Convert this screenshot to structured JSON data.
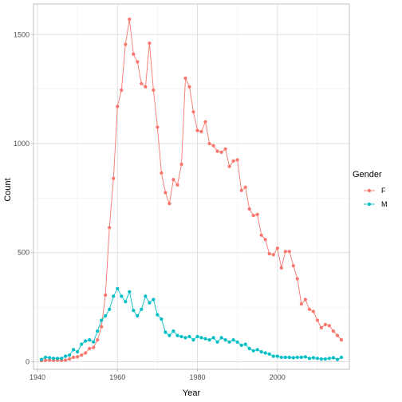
{
  "chart_data": {
    "type": "line",
    "xlabel": "Year",
    "ylabel": "Count",
    "xlim": [
      1939,
      2018
    ],
    "ylim": [
      -35,
      1640
    ],
    "x_ticks": [
      1940,
      1960,
      1980,
      2000
    ],
    "y_ticks": [
      0,
      500,
      1000,
      1500
    ],
    "grid": true,
    "legend": {
      "title": "Gender",
      "position": "right"
    },
    "series": [
      {
        "name": "F",
        "color": "#F8766D",
        "points": [
          [
            1941,
            5
          ],
          [
            1942,
            6
          ],
          [
            1943,
            7
          ],
          [
            1944,
            6
          ],
          [
            1945,
            7
          ],
          [
            1946,
            6
          ],
          [
            1947,
            7
          ],
          [
            1948,
            12
          ],
          [
            1949,
            20
          ],
          [
            1950,
            22
          ],
          [
            1951,
            30
          ],
          [
            1952,
            40
          ],
          [
            1953,
            60
          ],
          [
            1954,
            65
          ],
          [
            1955,
            100
          ],
          [
            1956,
            160
          ],
          [
            1957,
            305
          ],
          [
            1958,
            615
          ],
          [
            1959,
            840
          ],
          [
            1960,
            1170
          ],
          [
            1961,
            1245
          ],
          [
            1962,
            1455
          ],
          [
            1963,
            1570
          ],
          [
            1964,
            1410
          ],
          [
            1965,
            1375
          ],
          [
            1966,
            1275
          ],
          [
            1967,
            1260
          ],
          [
            1968,
            1460
          ],
          [
            1969,
            1245
          ],
          [
            1970,
            1075
          ],
          [
            1971,
            865
          ],
          [
            1972,
            775
          ],
          [
            1973,
            725
          ],
          [
            1974,
            835
          ],
          [
            1975,
            810
          ],
          [
            1976,
            905
          ],
          [
            1977,
            1300
          ],
          [
            1978,
            1260
          ],
          [
            1979,
            1145
          ],
          [
            1980,
            1060
          ],
          [
            1981,
            1055
          ],
          [
            1982,
            1100
          ],
          [
            1983,
            1000
          ],
          [
            1984,
            990
          ],
          [
            1985,
            965
          ],
          [
            1986,
            960
          ],
          [
            1987,
            975
          ],
          [
            1988,
            895
          ],
          [
            1989,
            920
          ],
          [
            1990,
            925
          ],
          [
            1991,
            785
          ],
          [
            1992,
            800
          ],
          [
            1993,
            700
          ],
          [
            1994,
            670
          ],
          [
            1995,
            675
          ],
          [
            1996,
            580
          ],
          [
            1997,
            560
          ],
          [
            1998,
            495
          ],
          [
            1999,
            490
          ],
          [
            2000,
            520
          ],
          [
            2001,
            430
          ],
          [
            2002,
            505
          ],
          [
            2003,
            505
          ],
          [
            2004,
            440
          ],
          [
            2005,
            380
          ],
          [
            2006,
            265
          ],
          [
            2007,
            285
          ],
          [
            2008,
            240
          ],
          [
            2009,
            230
          ],
          [
            2010,
            190
          ],
          [
            2011,
            155
          ],
          [
            2012,
            170
          ],
          [
            2013,
            165
          ],
          [
            2014,
            140
          ],
          [
            2015,
            120
          ],
          [
            2016,
            100
          ]
        ]
      },
      {
        "name": "M",
        "color": "#00BFC4",
        "points": [
          [
            1941,
            10
          ],
          [
            1942,
            20
          ],
          [
            1943,
            18
          ],
          [
            1944,
            15
          ],
          [
            1945,
            15
          ],
          [
            1946,
            15
          ],
          [
            1947,
            25
          ],
          [
            1948,
            30
          ],
          [
            1949,
            55
          ],
          [
            1950,
            45
          ],
          [
            1951,
            80
          ],
          [
            1952,
            95
          ],
          [
            1953,
            100
          ],
          [
            1954,
            90
          ],
          [
            1955,
            140
          ],
          [
            1956,
            190
          ],
          [
            1957,
            210
          ],
          [
            1958,
            240
          ],
          [
            1959,
            300
          ],
          [
            1960,
            335
          ],
          [
            1961,
            300
          ],
          [
            1962,
            275
          ],
          [
            1963,
            320
          ],
          [
            1964,
            235
          ],
          [
            1965,
            210
          ],
          [
            1966,
            240
          ],
          [
            1967,
            300
          ],
          [
            1968,
            270
          ],
          [
            1969,
            285
          ],
          [
            1970,
            215
          ],
          [
            1971,
            195
          ],
          [
            1972,
            135
          ],
          [
            1973,
            120
          ],
          [
            1974,
            140
          ],
          [
            1975,
            120
          ],
          [
            1976,
            115
          ],
          [
            1977,
            110
          ],
          [
            1978,
            115
          ],
          [
            1979,
            100
          ],
          [
            1980,
            115
          ],
          [
            1981,
            110
          ],
          [
            1982,
            105
          ],
          [
            1983,
            100
          ],
          [
            1984,
            110
          ],
          [
            1985,
            90
          ],
          [
            1986,
            110
          ],
          [
            1987,
            100
          ],
          [
            1988,
            90
          ],
          [
            1989,
            100
          ],
          [
            1990,
            90
          ],
          [
            1991,
            75
          ],
          [
            1992,
            80
          ],
          [
            1993,
            60
          ],
          [
            1994,
            50
          ],
          [
            1995,
            55
          ],
          [
            1996,
            45
          ],
          [
            1997,
            40
          ],
          [
            1998,
            35
          ],
          [
            1999,
            25
          ],
          [
            2000,
            25
          ],
          [
            2001,
            20
          ],
          [
            2002,
            20
          ],
          [
            2003,
            20
          ],
          [
            2004,
            18
          ],
          [
            2005,
            20
          ],
          [
            2006,
            20
          ],
          [
            2007,
            22
          ],
          [
            2008,
            15
          ],
          [
            2009,
            18
          ],
          [
            2010,
            15
          ],
          [
            2011,
            12
          ],
          [
            2012,
            12
          ],
          [
            2013,
            15
          ],
          [
            2014,
            18
          ],
          [
            2015,
            10
          ],
          [
            2016,
            20
          ]
        ]
      }
    ]
  }
}
